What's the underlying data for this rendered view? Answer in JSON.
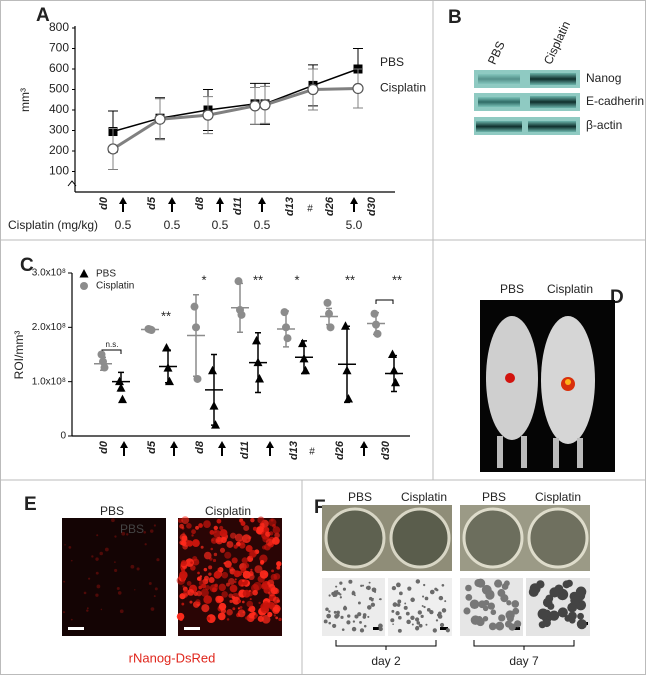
{
  "chart_data": [
    {
      "type": "line",
      "label": "A",
      "ylabel": "mm³",
      "categories": [
        "d0",
        "d5",
        "d8",
        "d11",
        "d13",
        "d26",
        "d30"
      ],
      "annotation": "#",
      "dose_label": "Cisplatin (mg/kg)",
      "doses": [
        0.5,
        0.5,
        0.5,
        0.5,
        {
          "value": 5,
          "label": "5.0"
        }
      ],
      "ylim": [
        0,
        800
      ],
      "yticks": [
        100,
        200,
        300,
        400,
        500,
        600,
        700,
        800
      ],
      "series": [
        {
          "name": "PBS",
          "color": "#000000",
          "marker": "square",
          "values": [
            295,
            360,
            400,
            430,
            430,
            520,
            600
          ],
          "errors": [
            100,
            100,
            100,
            100,
            100,
            100,
            100
          ]
        },
        {
          "name": "Cisplatin",
          "color": "#808080",
          "marker": "circle",
          "values": [
            210,
            355,
            375,
            420,
            425,
            500,
            505
          ],
          "errors": [
            100,
            100,
            90,
            90,
            90,
            100,
            95
          ]
        }
      ]
    },
    {
      "type": "dot",
      "label": "C",
      "ylabel": "ROI/mm³",
      "categories": [
        "d0",
        "d5",
        "d8",
        "d11",
        "d13",
        "d26",
        "d30"
      ],
      "annotation": "#",
      "ylim": [
        0,
        300000000.0
      ],
      "yticks": [
        0,
        {
          "value": 100000000.0,
          "label": "1.0x10⁸"
        },
        {
          "value": 200000000.0,
          "label": "2.0x10⁸"
        },
        {
          "value": 300000000.0,
          "label": "3.0x10⁸"
        }
      ],
      "series": [
        {
          "name": "PBS",
          "color": "#000000",
          "marker": "triangle",
          "points": [
            [
              100000000.0,
              88000000.0,
              67000000.0
            ],
            [
              162000000.0,
              125000000.0,
              100000000.0
            ],
            [
              120000000.0,
              55000000.0,
              20000000.0
            ],
            [
              175000000.0,
              135000000.0,
              105000000.0
            ],
            [
              170000000.0,
              142000000.0,
              120000000.0
            ],
            [
              202000000.0,
              120000000.0,
              68000000.0
            ],
            [
              150000000.0,
              120000000.0,
              98000000.0
            ]
          ],
          "means": [
            100000000.0,
            128000000.0,
            85000000.0,
            135000000.0,
            145000000.0,
            132000000.0,
            115000000.0
          ],
          "sd": [
            17000000.0,
            30000000.0,
            65000000.0,
            55000000.0,
            30000000.0,
            70000000.0,
            33000000.0
          ]
        },
        {
          "name": "Cisplatin",
          "color": "#8c8c8c",
          "marker": "circle",
          "points": [
            [
              150000000.0,
              137000000.0,
              126000000.0
            ],
            [
              197000000.0,
              196000000.0,
              195000000.0
            ],
            [
              238000000.0,
              200000000.0,
              105000000.0
            ],
            [
              285000000.0,
              232000000.0,
              223000000.0
            ],
            [
              228000000.0,
              200000000.0,
              180000000.0
            ],
            [
              245000000.0,
              225000000.0,
              200000000.0
            ],
            [
              225000000.0,
              205000000.0,
              188000000.0
            ]
          ],
          "means": [
            133000000.0,
            196000000.0,
            185000000.0,
            236000000.0,
            197000000.0,
            220000000.0,
            207000000.0
          ],
          "sd": [
            12000000.0,
            1000000.0,
            75000000.0,
            45000000.0,
            33000000.0,
            15000000.0,
            20000000.0
          ]
        }
      ],
      "significance": [
        "n.s.",
        "**",
        "*",
        "**",
        "*",
        "**",
        "**"
      ]
    }
  ],
  "panel_b": {
    "label": "B",
    "columns": [
      "PBS",
      "Cisplatin"
    ],
    "rows": [
      "Nanog",
      "E-cadherin",
      "β-actin"
    ]
  },
  "panel_d": {
    "label": "D",
    "columns": [
      "PBS",
      "Cisplatin"
    ]
  },
  "panel_e": {
    "label": "E",
    "columns": [
      "PBS",
      "Cisplatin"
    ],
    "overlay": "PBS",
    "caption": "rNanog-DsRed"
  },
  "panel_f": {
    "label": "F",
    "columns": [
      "PBS",
      "Cisplatin",
      "PBS",
      "Cisplatin"
    ],
    "groups": [
      "day 2",
      "day 7"
    ]
  }
}
